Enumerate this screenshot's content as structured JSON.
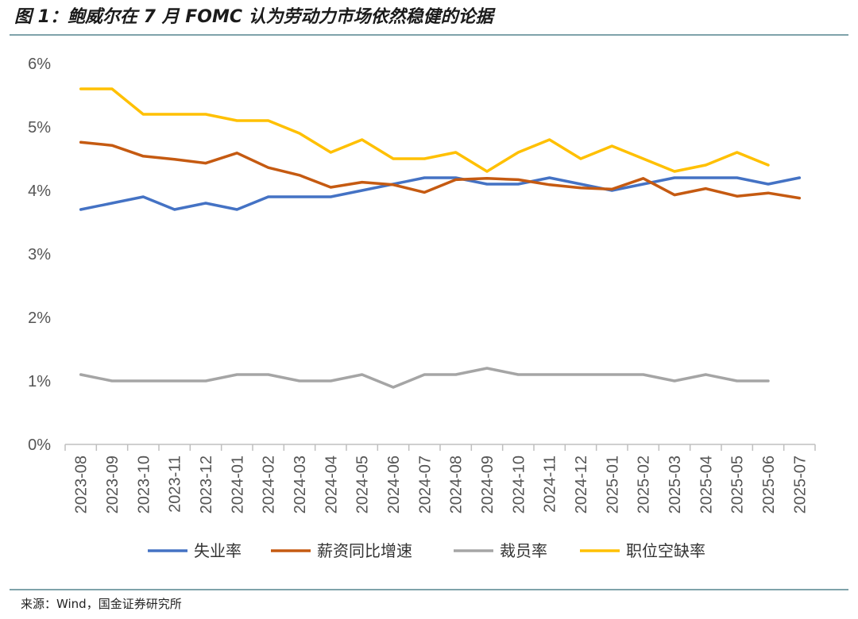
{
  "figure": {
    "title": "图 1：鲍威尔在 7 月 FOMC 认为劳动力市场依然稳健的论据",
    "source": "来源：Wind，国金证券研究所"
  },
  "chart_data": {
    "type": "line",
    "title": "",
    "xlabel": "",
    "ylabel": "",
    "ylim": [
      0,
      6
    ],
    "yticks": [
      "0%",
      "1%",
      "2%",
      "3%",
      "4%",
      "5%",
      "6%"
    ],
    "grid": false,
    "legend_position": "bottom",
    "categories": [
      "2023-08",
      "2023-09",
      "2023-10",
      "2023-11",
      "2023-12",
      "2024-01",
      "2024-02",
      "2024-03",
      "2024-04",
      "2024-05",
      "2024-06",
      "2024-07",
      "2024-08",
      "2024-09",
      "2024-10",
      "2024-11",
      "2024-12",
      "2025-01",
      "2025-02",
      "2025-03",
      "2025-04",
      "2025-05",
      "2025-06",
      "2025-07"
    ],
    "series": [
      {
        "name": "失业率",
        "color": "#4472C4",
        "values": [
          3.7,
          3.8,
          3.9,
          3.7,
          3.8,
          3.7,
          3.9,
          3.9,
          3.9,
          4.0,
          4.1,
          4.2,
          4.2,
          4.1,
          4.1,
          4.2,
          4.1,
          4.0,
          4.1,
          4.2,
          4.2,
          4.2,
          4.1,
          4.2
        ]
      },
      {
        "name": "薪资同比增速",
        "color": "#C55A11",
        "values": [
          4.76,
          4.71,
          4.54,
          4.49,
          4.43,
          4.59,
          4.36,
          4.24,
          4.05,
          4.13,
          4.09,
          3.97,
          4.17,
          4.19,
          4.17,
          4.09,
          4.04,
          4.02,
          4.19,
          3.93,
          4.03,
          3.91,
          3.96,
          3.88
        ]
      },
      {
        "name": "裁员率",
        "color": "#A5A5A5",
        "values": [
          1.1,
          1.0,
          1.0,
          1.0,
          1.0,
          1.1,
          1.1,
          1.0,
          1.0,
          1.1,
          0.9,
          1.1,
          1.1,
          1.2,
          1.1,
          1.1,
          1.1,
          1.1,
          1.1,
          1.0,
          1.1,
          1.0,
          1.0,
          null
        ]
      },
      {
        "name": "职位空缺率",
        "color": "#FFC000",
        "values": [
          5.6,
          5.6,
          5.2,
          5.2,
          5.2,
          5.1,
          5.1,
          4.9,
          4.6,
          4.8,
          4.5,
          4.5,
          4.6,
          4.3,
          4.6,
          4.8,
          4.5,
          4.7,
          4.5,
          4.3,
          4.4,
          4.6,
          4.4,
          null
        ]
      }
    ]
  }
}
